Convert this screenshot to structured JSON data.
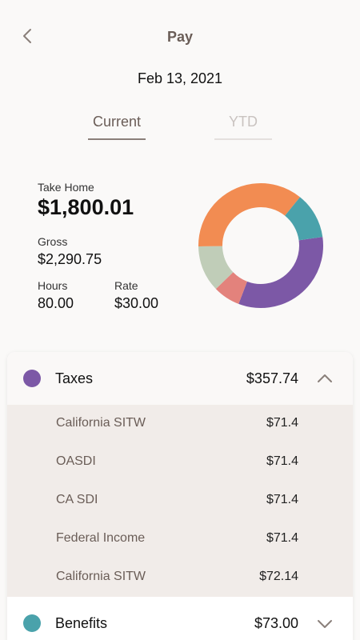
{
  "header": {
    "title": "Pay",
    "date": "Feb 13, 2021"
  },
  "tabs": [
    {
      "label": "Current",
      "active": true
    },
    {
      "label": "YTD",
      "active": false
    }
  ],
  "summary": {
    "take_home_label": "Take Home",
    "take_home_value": "$1,800.01",
    "gross_label": "Gross",
    "gross_value": "$2,290.75",
    "hours_label": "Hours",
    "hours_value": "80.00",
    "rate_label": "Rate",
    "rate_value": "$30.00"
  },
  "donut": {
    "segments": [
      {
        "color": "#7c58a6",
        "fraction": 0.33
      },
      {
        "color": "#e3827c",
        "fraction": 0.07
      },
      {
        "color": "#c0cdb8",
        "fraction": 0.12
      },
      {
        "color": "#f28c52",
        "fraction": 0.36
      },
      {
        "color": "#4aa2ab",
        "fraction": 0.12
      }
    ]
  },
  "breakdown": {
    "taxes": {
      "label": "Taxes",
      "amount": "$357.74",
      "color": "#7c58a6",
      "expanded": true,
      "items": [
        {
          "name": "California SITW",
          "amount": "$71.4"
        },
        {
          "name": "OASDI",
          "amount": "$71.4"
        },
        {
          "name": "CA SDI",
          "amount": "$71.4"
        },
        {
          "name": "Federal Income",
          "amount": "$71.4"
        },
        {
          "name": "California SITW",
          "amount": "$72.14"
        }
      ]
    },
    "benefits": {
      "label": "Benefits",
      "amount": "$73.00",
      "color": "#4aa2ab",
      "expanded": false
    }
  },
  "icons": {
    "back": "chevron-left-icon",
    "collapse": "chevron-up-icon",
    "expand": "chevron-down-icon"
  }
}
